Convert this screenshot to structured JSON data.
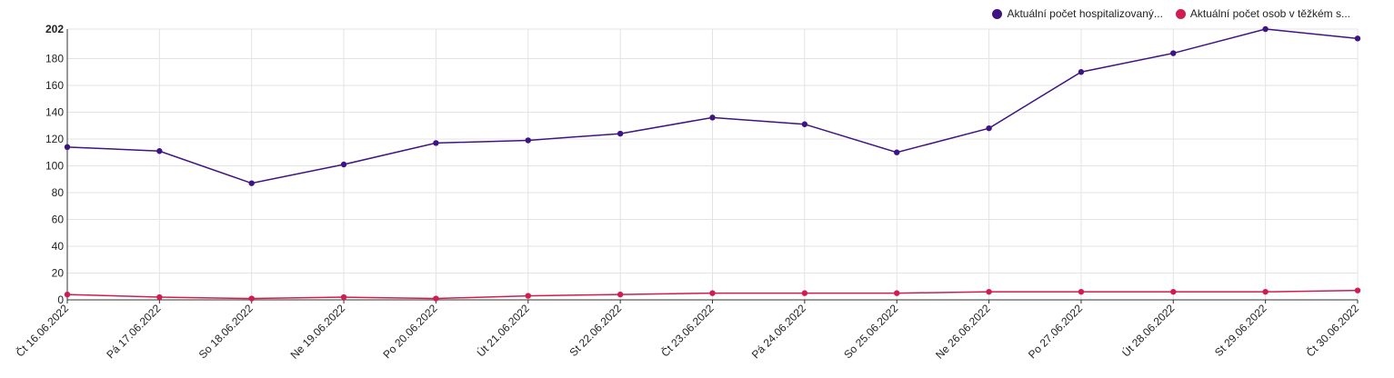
{
  "chart_data": {
    "type": "line",
    "title": "",
    "xlabel": "",
    "ylabel": "",
    "ylim": [
      0,
      202
    ],
    "yticks": [
      0,
      20,
      40,
      60,
      80,
      100,
      120,
      140,
      160,
      180,
      202
    ],
    "grid": true,
    "legend_position": "top-right",
    "categories": [
      "Čt 16.06.2022",
      "Pá 17.06.2022",
      "So 18.06.2022",
      "Ne 19.06.2022",
      "Po 20.06.2022",
      "Út 21.06.2022",
      "St 22.06.2022",
      "Čt 23.06.2022",
      "Pá 24.06.2022",
      "So 25.06.2022",
      "Ne 26.06.2022",
      "Po 27.06.2022",
      "Út 28.06.2022",
      "St 29.06.2022",
      "Čt 30.06.2022"
    ],
    "series": [
      {
        "name": "Aktuální počet hospitalizovaný...",
        "color": "#3f1482",
        "values": [
          114,
          111,
          87,
          101,
          117,
          119,
          124,
          136,
          131,
          110,
          128,
          170,
          184,
          202,
          195
        ]
      },
      {
        "name": "Aktuální počet osob v těžkém s...",
        "color": "#d01c4e",
        "values": [
          4,
          2,
          1,
          2,
          1,
          3,
          4,
          5,
          5,
          5,
          6,
          6,
          6,
          6,
          7
        ]
      }
    ]
  }
}
